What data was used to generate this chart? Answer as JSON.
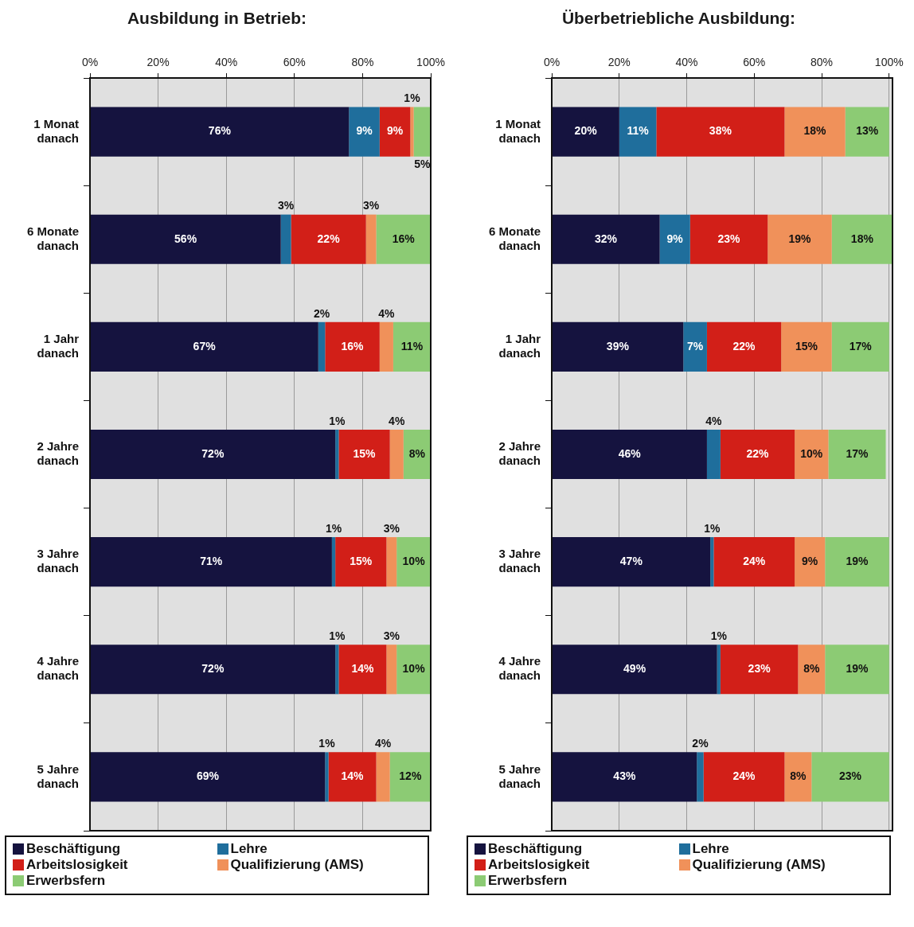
{
  "chart_data": [
    {
      "type": "bar",
      "orientation": "horizontal",
      "stacked": true,
      "title": "Ausbildung in Betrieb:",
      "categories": [
        "1 Monat danach",
        "6 Monate danach",
        "1 Jahr danach",
        "2 Jahre danach",
        "3 Jahre danach",
        "4 Jahre danach",
        "5 Jahre danach"
      ],
      "series": [
        {
          "name": "Beschäftigung",
          "color": "#15133f",
          "values": [
            76,
            56,
            67,
            72,
            71,
            72,
            69
          ],
          "value_labels": [
            "76%",
            "56%",
            "67%",
            "72%",
            "71%",
            "72%",
            "69%"
          ]
        },
        {
          "name": "Lehre",
          "color": "#1f6e9c",
          "values": [
            9,
            3,
            2,
            1,
            1,
            1,
            1
          ],
          "value_labels": [
            "9%",
            "3%",
            "2%",
            "1%",
            "1%",
            "1%",
            "1%"
          ]
        },
        {
          "name": "Arbeitslosigkeit",
          "color": "#d21f18",
          "values": [
            9,
            22,
            16,
            15,
            15,
            14,
            14
          ],
          "value_labels": [
            "9%",
            "22%",
            "16%",
            "15%",
            "15%",
            "14%",
            "14%"
          ]
        },
        {
          "name": "Qualifizierung (AMS)",
          "color": "#f0915a",
          "values": [
            1,
            3,
            4,
            4,
            3,
            3,
            4
          ],
          "value_labels": [
            "1%",
            "3%",
            "4%",
            "4%",
            "3%",
            "3%",
            "4%"
          ]
        },
        {
          "name": "Erwerbsfern",
          "color": "#8ccb74",
          "values": [
            5,
            16,
            11,
            8,
            10,
            10,
            12
          ],
          "value_labels": [
            "5%",
            "16%",
            "11%",
            "8%",
            "10%",
            "10%",
            "12%"
          ]
        }
      ],
      "xlim": [
        0,
        100
      ],
      "xticks": [
        {
          "value": 0,
          "label": "0%"
        },
        {
          "value": 20,
          "label": "20%"
        },
        {
          "value": 40,
          "label": "40%"
        },
        {
          "value": 60,
          "label": "60%"
        },
        {
          "value": 80,
          "label": "80%"
        },
        {
          "value": 100,
          "label": "100%"
        }
      ],
      "grid": "x",
      "legend": "bottom"
    },
    {
      "type": "bar",
      "orientation": "horizontal",
      "stacked": true,
      "title": "Überbetriebliche Ausbildung:",
      "categories": [
        "1 Monat danach",
        "6 Monate danach",
        "1 Jahr danach",
        "2 Jahre danach",
        "3 Jahre danach",
        "4 Jahre danach",
        "5 Jahre danach"
      ],
      "series": [
        {
          "name": "Beschäftigung",
          "color": "#15133f",
          "values": [
            20,
            32,
            39,
            46,
            47,
            49,
            43
          ],
          "value_labels": [
            "20%",
            "32%",
            "39%",
            "46%",
            "47%",
            "49%",
            "43%"
          ]
        },
        {
          "name": "Lehre",
          "color": "#1f6e9c",
          "values": [
            11,
            9,
            7,
            4,
            1,
            1,
            2
          ],
          "value_labels": [
            "11%",
            "9%",
            "7%",
            "4%",
            "1%",
            "1%",
            "2%"
          ]
        },
        {
          "name": "Arbeitslosigkeit",
          "color": "#d21f18",
          "values": [
            38,
            23,
            22,
            22,
            24,
            23,
            24
          ],
          "value_labels": [
            "38%",
            "23%",
            "22%",
            "22%",
            "24%",
            "23%",
            "24%"
          ]
        },
        {
          "name": "Qualifizierung (AMS)",
          "color": "#f0915a",
          "values": [
            18,
            19,
            15,
            10,
            9,
            8,
            8
          ],
          "value_labels": [
            "18%",
            "19%",
            "15%",
            "10%",
            "9%",
            "8%",
            "8%"
          ]
        },
        {
          "name": "Erwerbsfern",
          "color": "#8ccb74",
          "values": [
            13,
            18,
            17,
            17,
            19,
            19,
            23
          ],
          "value_labels": [
            "13%",
            "18%",
            "17%",
            "17%",
            "19%",
            "19%",
            "23%"
          ]
        }
      ],
      "xlim": [
        0,
        101
      ],
      "xticks": [
        {
          "value": 0,
          "label": "0%"
        },
        {
          "value": 20,
          "label": "20%"
        },
        {
          "value": 40,
          "label": "40%"
        },
        {
          "value": 60,
          "label": "60%"
        },
        {
          "value": 80,
          "label": "80%"
        },
        {
          "value": 100,
          "label": "100%"
        }
      ],
      "grid": "x",
      "legend": "bottom"
    }
  ]
}
